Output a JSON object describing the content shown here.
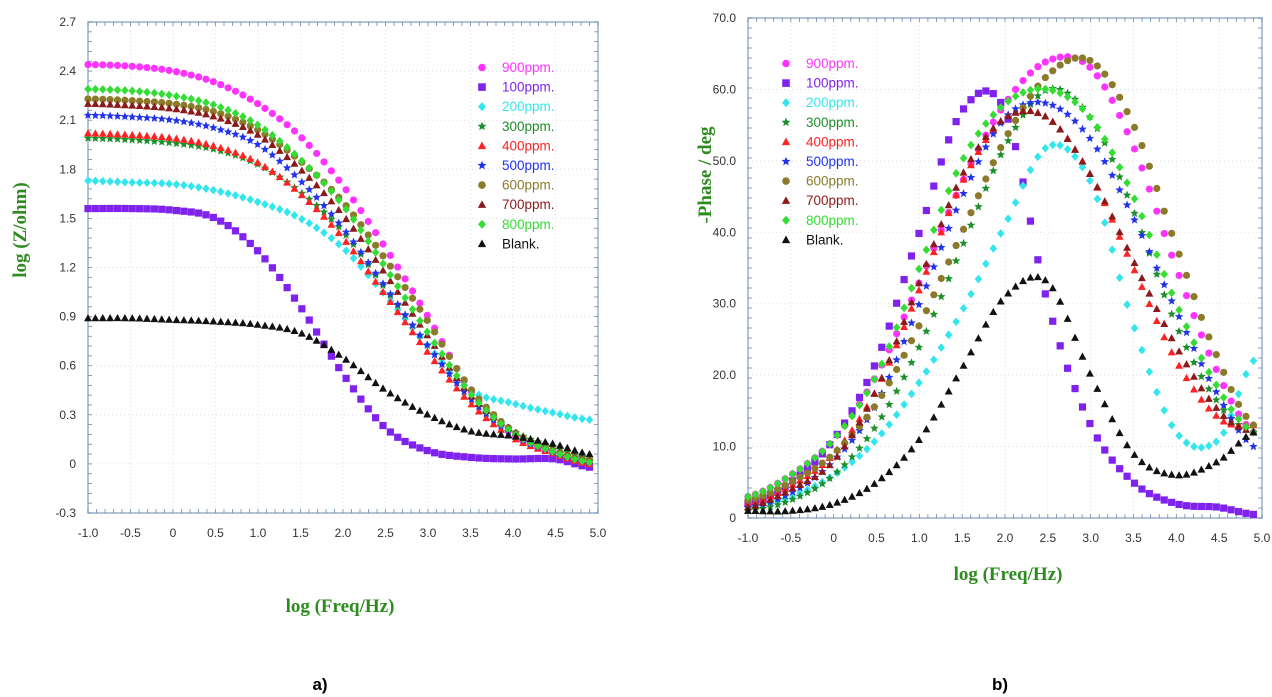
{
  "chart_data": [
    {
      "type": "scatter",
      "panel_label": "a)",
      "xlabel": "log (Freq/Hz)",
      "ylabel": "log (Z/ohm)",
      "xlim": [
        -1.0,
        5.0
      ],
      "ylim": [
        -0.3,
        2.7
      ],
      "x_ticks": [
        "-1.0",
        "-0.5",
        "0",
        "0.5",
        "1.0",
        "1.5",
        "2.0",
        "2.5",
        "3.0",
        "3.5",
        "4.0",
        "4.5",
        "5.0"
      ],
      "y_ticks": [
        "-0.3",
        "0",
        "0.3",
        "0.6",
        "0.9",
        "1.2",
        "1.5",
        "1.8",
        "2.1",
        "2.4",
        "2.7"
      ],
      "grid": true,
      "legend_position": "top-right",
      "x_ticks_numeric": [
        -1.0,
        -0.5,
        0,
        0.5,
        1.0,
        1.5,
        2.0,
        2.5,
        3.0,
        3.5,
        4.0,
        4.5,
        5.0
      ],
      "y_ticks_numeric": [
        -0.3,
        0,
        0.3,
        0.6,
        0.9,
        1.2,
        1.5,
        1.8,
        2.1,
        2.4,
        2.7
      ],
      "x": [
        -1.0,
        -0.5,
        0.0,
        0.5,
        1.0,
        1.5,
        2.0,
        2.5,
        3.0,
        3.5,
        4.0,
        4.5,
        4.9
      ],
      "series": [
        {
          "name": "900ppm.",
          "color": "#ff33ff",
          "marker": "circle",
          "values": [
            2.44,
            2.43,
            2.4,
            2.33,
            2.2,
            2.0,
            1.7,
            1.32,
            0.9,
            0.45,
            0.18,
            0.06,
            0.0
          ]
        },
        {
          "name": "100ppm.",
          "color": "#7f22ee",
          "marker": "square",
          "values": [
            1.56,
            1.56,
            1.55,
            1.5,
            1.3,
            0.96,
            0.55,
            0.22,
            0.08,
            0.04,
            0.03,
            0.03,
            -0.02
          ]
        },
        {
          "name": "200ppm.",
          "color": "#33e6ee",
          "marker": "diamond",
          "values": [
            1.73,
            1.72,
            1.71,
            1.67,
            1.6,
            1.5,
            1.32,
            1.03,
            0.72,
            0.45,
            0.37,
            0.31,
            0.27
          ]
        },
        {
          "name": "300ppm.",
          "color": "#1b8f2a",
          "marker": "star",
          "values": [
            1.99,
            1.98,
            1.96,
            1.92,
            1.83,
            1.66,
            1.42,
            1.07,
            0.72,
            0.4,
            0.2,
            0.1,
            0.03
          ]
        },
        {
          "name": "400ppm.",
          "color": "#ff2222",
          "marker": "triangle",
          "values": [
            2.02,
            2.01,
            1.99,
            1.94,
            1.84,
            1.65,
            1.38,
            1.03,
            0.68,
            0.37,
            0.16,
            0.06,
            0.0
          ]
        },
        {
          "name": "500ppm.",
          "color": "#2233ee",
          "marker": "star",
          "values": [
            2.13,
            2.12,
            2.1,
            2.05,
            1.95,
            1.73,
            1.44,
            1.08,
            0.72,
            0.4,
            0.18,
            0.07,
            0.02
          ]
        },
        {
          "name": "600ppm.",
          "color": "#8b7a2a",
          "marker": "circle",
          "values": [
            2.23,
            2.22,
            2.2,
            2.15,
            2.04,
            1.85,
            1.6,
            1.25,
            0.87,
            0.46,
            0.2,
            0.08,
            0.02
          ]
        },
        {
          "name": "700ppm.",
          "color": "#8b1a1a",
          "marker": "triangle",
          "values": [
            2.2,
            2.19,
            2.17,
            2.12,
            2.01,
            1.8,
            1.52,
            1.16,
            0.78,
            0.42,
            0.2,
            0.08,
            0.02
          ]
        },
        {
          "name": "800ppm.",
          "color": "#33dd33",
          "marker": "diamond",
          "values": [
            2.29,
            2.28,
            2.25,
            2.19,
            2.07,
            1.86,
            1.58,
            1.2,
            0.8,
            0.43,
            0.19,
            0.07,
            0.01
          ]
        },
        {
          "name": "Blank.",
          "color": "#111111",
          "marker": "triangle",
          "values": [
            0.89,
            0.89,
            0.88,
            0.87,
            0.85,
            0.8,
            0.65,
            0.45,
            0.3,
            0.2,
            0.17,
            0.12,
            0.06
          ]
        }
      ]
    },
    {
      "type": "scatter",
      "panel_label": "b)",
      "xlabel": "log (Freq/Hz)",
      "ylabel": "-Phase / deg",
      "xlim": [
        -1.0,
        5.0
      ],
      "ylim": [
        0,
        70.0
      ],
      "x_ticks": [
        "-1.0",
        "-0.5",
        "0",
        "0.5",
        "1.0",
        "1.5",
        "2.0",
        "2.5",
        "3.0",
        "3.5",
        "4.0",
        "4.5",
        "5.0"
      ],
      "y_ticks": [
        "0",
        "10.0",
        "20.0",
        "30.0",
        "40.0",
        "50.0",
        "60.0",
        "70.0"
      ],
      "grid": true,
      "legend_position": "top-left",
      "x_ticks_numeric": [
        -1.0,
        -0.5,
        0,
        0.5,
        1.0,
        1.5,
        2.0,
        2.5,
        3.0,
        3.5,
        4.0,
        4.5,
        5.0
      ],
      "y_ticks_numeric": [
        0,
        10,
        20,
        30,
        40,
        50,
        60,
        70
      ],
      "x": [
        -1.0,
        -0.5,
        0.0,
        0.5,
        1.0,
        1.5,
        2.0,
        2.5,
        3.0,
        3.5,
        4.0,
        4.5,
        4.9
      ],
      "series": [
        {
          "name": "900ppm.",
          "color": "#ff33ff",
          "marker": "circle",
          "values": [
            3,
            6,
            11,
            20,
            33,
            47,
            58,
            64,
            63,
            52,
            35,
            20,
            12
          ]
        },
        {
          "name": "100ppm.",
          "color": "#7f22ee",
          "marker": "square",
          "values": [
            2,
            5,
            11,
            22,
            40,
            57,
            57,
            30,
            13,
            5,
            2,
            1.5,
            0.5
          ]
        },
        {
          "name": "200ppm.",
          "color": "#33e6ee",
          "marker": "diamond",
          "values": [
            1.5,
            3,
            6,
            11,
            19,
            29,
            41,
            52,
            47,
            27,
            12,
            11,
            22
          ]
        },
        {
          "name": "300ppm.",
          "color": "#1b8f2a",
          "marker": "star",
          "values": [
            1,
            2.5,
            6,
            13,
            24,
            38,
            52,
            60,
            56,
            43,
            27,
            16,
            12
          ]
        },
        {
          "name": "400ppm.",
          "color": "#ff2222",
          "marker": "triangle",
          "values": [
            2,
            4.5,
            9,
            18,
            32,
            47,
            56,
            56,
            48,
            35,
            22,
            14,
            13
          ]
        },
        {
          "name": "500ppm.",
          "color": "#2233ee",
          "marker": "star",
          "values": [
            1.5,
            3.5,
            8,
            16,
            30,
            45,
            56,
            58,
            53,
            42,
            29,
            17,
            10
          ]
        },
        {
          "name": "600ppm.",
          "color": "#8b7a2a",
          "marker": "circle",
          "values": [
            2.5,
            5,
            9,
            16,
            27,
            40,
            53,
            62,
            64,
            55,
            38,
            22,
            13
          ]
        },
        {
          "name": "700ppm.",
          "color": "#8b1a1a",
          "marker": "triangle",
          "values": [
            1.5,
            4,
            8,
            18,
            33,
            48,
            56,
            56,
            48,
            36,
            24,
            15,
            12
          ]
        },
        {
          "name": "800ppm.",
          "color": "#33dd33",
          "marker": "diamond",
          "values": [
            3,
            6,
            11,
            20,
            35,
            50,
            58,
            60,
            56,
            45,
            30,
            18,
            12
          ]
        },
        {
          "name": "Blank.",
          "color": "#111111",
          "marker": "triangle",
          "values": [
            1,
            1,
            2,
            5,
            11,
            21,
            31,
            33,
            20,
            9,
            6,
            8,
            12
          ]
        }
      ]
    }
  ]
}
